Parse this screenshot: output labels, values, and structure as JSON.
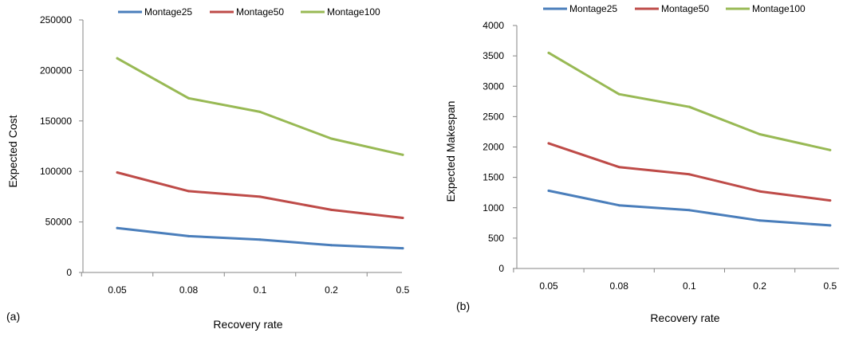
{
  "chart_data": [
    {
      "type": "line",
      "panel_label": "(a)",
      "title": "",
      "xlabel": "Recovery rate",
      "ylabel": "Expected Cost",
      "categories": [
        "0.05",
        "0.08",
        "0.1",
        "0.2",
        "0.5"
      ],
      "ylim": [
        0,
        250000
      ],
      "yticks": [
        "0",
        "50000",
        "100000",
        "150000",
        "200000",
        "250000"
      ],
      "grid": false,
      "legend": "top",
      "series": [
        {
          "name": "Montage25",
          "color": "#4a7ebb",
          "values": [
            44000,
            36000,
            32500,
            27000,
            24000
          ]
        },
        {
          "name": "Montage50",
          "color": "#be4b48",
          "values": [
            99000,
            80500,
            75000,
            62000,
            54000
          ]
        },
        {
          "name": "Montage100",
          "color": "#98b954",
          "values": [
            212000,
            172500,
            159000,
            132500,
            116500
          ]
        }
      ]
    },
    {
      "type": "line",
      "panel_label": "(b)",
      "title": "",
      "xlabel": "Recovery rate",
      "ylabel": "Expected Makespan",
      "categories": [
        "0.05",
        "0.08",
        "0.1",
        "0.2",
        "0.5"
      ],
      "ylim": [
        0,
        4000
      ],
      "yticks": [
        "0",
        "500",
        "1000",
        "1500",
        "2000",
        "2500",
        "3000",
        "3500",
        "4000"
      ],
      "grid": false,
      "legend": "top",
      "series": [
        {
          "name": "Montage25",
          "color": "#4a7ebb",
          "values": [
            1280,
            1040,
            960,
            790,
            710
          ]
        },
        {
          "name": "Montage50",
          "color": "#be4b48",
          "values": [
            2060,
            1670,
            1550,
            1270,
            1120
          ]
        },
        {
          "name": "Montage100",
          "color": "#98b954",
          "values": [
            3550,
            2870,
            2660,
            2210,
            1950
          ]
        }
      ]
    }
  ]
}
